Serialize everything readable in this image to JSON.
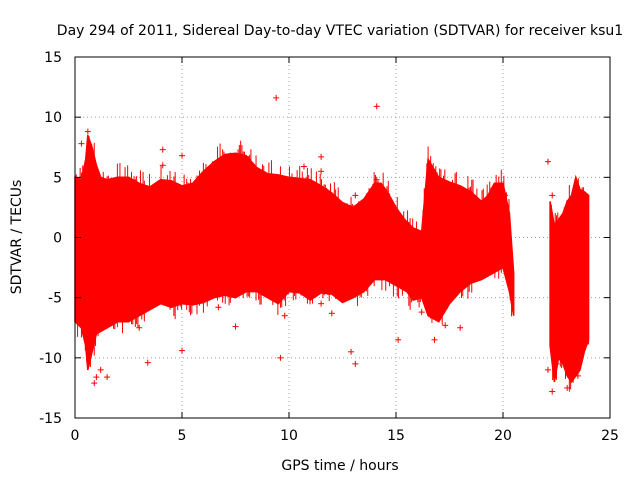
{
  "chart_data": {
    "type": "scatter",
    "title": "Day 294 of 2011, Sidereal Day-to-day VTEC variation (SDTVAR) for receiver ksu1",
    "xlabel": "GPS time / hours",
    "ylabel": "SDTVAR / TECUs",
    "xlim": [
      0,
      25
    ],
    "ylim": [
      -15,
      15
    ],
    "xticks": [
      0,
      5,
      10,
      15,
      20,
      25
    ],
    "yticks": [
      -15,
      -10,
      -5,
      0,
      5,
      10,
      15
    ],
    "grid": true,
    "marker": "plus",
    "color": "#ff0000",
    "envelope_upper": [
      [
        0.0,
        5.0
      ],
      [
        0.3,
        4.8
      ],
      [
        0.5,
        6.5
      ],
      [
        0.6,
        8.5
      ],
      [
        0.8,
        7.5
      ],
      [
        1.0,
        6.0
      ],
      [
        1.2,
        5.0
      ],
      [
        1.5,
        4.8
      ],
      [
        2.0,
        5.0
      ],
      [
        2.5,
        5.0
      ],
      [
        3.0,
        4.5
      ],
      [
        3.5,
        4.2
      ],
      [
        4.0,
        4.8
      ],
      [
        4.5,
        4.7
      ],
      [
        5.0,
        4.3
      ],
      [
        5.5,
        4.5
      ],
      [
        6.0,
        5.5
      ],
      [
        6.5,
        6.3
      ],
      [
        7.0,
        6.9
      ],
      [
        7.5,
        7.0
      ],
      [
        8.0,
        6.8
      ],
      [
        8.5,
        5.8
      ],
      [
        9.0,
        5.3
      ],
      [
        9.5,
        5.2
      ],
      [
        10.0,
        5.0
      ],
      [
        10.5,
        4.9
      ],
      [
        11.0,
        4.8
      ],
      [
        11.5,
        4.3
      ],
      [
        12.0,
        3.7
      ],
      [
        12.5,
        2.9
      ],
      [
        13.0,
        2.5
      ],
      [
        13.5,
        3.2
      ],
      [
        14.0,
        4.5
      ],
      [
        14.3,
        4.5
      ],
      [
        14.6,
        3.8
      ],
      [
        15.0,
        2.5
      ],
      [
        15.4,
        1.5
      ],
      [
        15.8,
        0.8
      ],
      [
        16.2,
        0.5
      ],
      [
        16.5,
        6.5
      ],
      [
        17.0,
        5.0
      ],
      [
        17.5,
        4.6
      ],
      [
        18.0,
        4.3
      ],
      [
        18.5,
        3.8
      ],
      [
        19.0,
        3.0
      ],
      [
        19.3,
        3.5
      ],
      [
        19.6,
        4.5
      ],
      [
        20.0,
        4.5
      ],
      [
        20.3,
        2.0
      ],
      [
        20.5,
        -3.0
      ]
    ],
    "envelope_lower": [
      [
        0.0,
        -7.0
      ],
      [
        0.3,
        -7.5
      ],
      [
        0.5,
        -9.0
      ],
      [
        0.6,
        -11.0
      ],
      [
        0.8,
        -9.5
      ],
      [
        1.0,
        -8.0
      ],
      [
        1.5,
        -7.5
      ],
      [
        2.0,
        -7.0
      ],
      [
        2.5,
        -7.0
      ],
      [
        3.0,
        -6.5
      ],
      [
        3.5,
        -6.0
      ],
      [
        4.0,
        -5.5
      ],
      [
        4.5,
        -5.8
      ],
      [
        5.0,
        -5.5
      ],
      [
        5.5,
        -5.6
      ],
      [
        6.0,
        -5.4
      ],
      [
        6.5,
        -5.0
      ],
      [
        7.0,
        -4.8
      ],
      [
        7.5,
        -5.0
      ],
      [
        8.0,
        -4.5
      ],
      [
        8.5,
        -4.5
      ],
      [
        9.0,
        -5.0
      ],
      [
        9.5,
        -5.5
      ],
      [
        10.0,
        -4.5
      ],
      [
        10.5,
        -4.6
      ],
      [
        11.0,
        -5.2
      ],
      [
        11.5,
        -4.6
      ],
      [
        12.0,
        -4.7
      ],
      [
        12.5,
        -5.4
      ],
      [
        13.0,
        -5.0
      ],
      [
        13.5,
        -4.5
      ],
      [
        14.0,
        -3.5
      ],
      [
        14.5,
        -3.5
      ],
      [
        15.0,
        -4.0
      ],
      [
        15.5,
        -4.5
      ],
      [
        15.8,
        -5.2
      ],
      [
        16.2,
        -5.0
      ],
      [
        16.5,
        -6.5
      ],
      [
        17.0,
        -7.0
      ],
      [
        17.5,
        -5.5
      ],
      [
        18.0,
        -4.5
      ],
      [
        18.5,
        -3.8
      ],
      [
        19.0,
        -3.5
      ],
      [
        19.5,
        -3.0
      ],
      [
        20.0,
        -2.5
      ],
      [
        20.3,
        -4.5
      ],
      [
        20.5,
        -6.5
      ]
    ],
    "envelope2_upper": [
      [
        22.2,
        3.0
      ],
      [
        22.4,
        1.0
      ],
      [
        22.6,
        1.5
      ],
      [
        22.8,
        2.0
      ],
      [
        23.0,
        3.0
      ],
      [
        23.2,
        3.5
      ],
      [
        23.4,
        5.0
      ],
      [
        23.6,
        4.0
      ],
      [
        23.8,
        3.8
      ],
      [
        24.0,
        3.5
      ]
    ],
    "envelope2_lower": [
      [
        22.2,
        -9.0
      ],
      [
        22.4,
        -12.0
      ],
      [
        22.6,
        -10.0
      ],
      [
        22.8,
        -10.5
      ],
      [
        23.0,
        -11.5
      ],
      [
        23.2,
        -12.0
      ],
      [
        23.4,
        -11.5
      ],
      [
        23.6,
        -11.0
      ],
      [
        23.8,
        -9.5
      ],
      [
        24.0,
        -8.5
      ]
    ],
    "outliers": [
      [
        9.4,
        11.6
      ],
      [
        14.1,
        10.9
      ],
      [
        3.4,
        -10.4
      ],
      [
        1.0,
        -11.6
      ],
      [
        1.5,
        -11.6
      ],
      [
        0.9,
        -12.1
      ],
      [
        7.5,
        -7.4
      ],
      [
        9.6,
        -10.0
      ],
      [
        13.1,
        -10.5
      ],
      [
        11.5,
        -5.5
      ],
      [
        12.9,
        -9.5
      ],
      [
        15.1,
        -8.5
      ],
      [
        16.8,
        -8.5
      ],
      [
        2.5,
        4.5
      ],
      [
        4.1,
        6.0
      ],
      [
        4.1,
        7.3
      ],
      [
        5.0,
        6.8
      ],
      [
        11.5,
        6.7
      ],
      [
        11.5,
        5.5
      ],
      [
        13.1,
        3.5
      ],
      [
        14.1,
        4.8
      ],
      [
        22.1,
        -11.0
      ],
      [
        22.3,
        -12.8
      ],
      [
        23.5,
        -11.5
      ],
      [
        22.5,
        -10.5
      ],
      [
        22.1,
        6.3
      ],
      [
        22.3,
        3.5
      ],
      [
        0.6,
        8.8
      ],
      [
        0.3,
        7.8
      ],
      [
        16.2,
        -6.2
      ],
      [
        18.0,
        -7.5
      ],
      [
        8.1,
        5.8
      ],
      [
        10.7,
        5.9
      ],
      [
        20.1,
        3.5
      ],
      [
        6.7,
        -5.8
      ],
      [
        3.0,
        -7.5
      ],
      [
        1.2,
        -11.0
      ],
      [
        5.0,
        -9.4
      ],
      [
        9.8,
        -6.5
      ],
      [
        12.0,
        -6.3
      ],
      [
        17.3,
        -7.3
      ],
      [
        23.0,
        -12.5
      ]
    ]
  }
}
